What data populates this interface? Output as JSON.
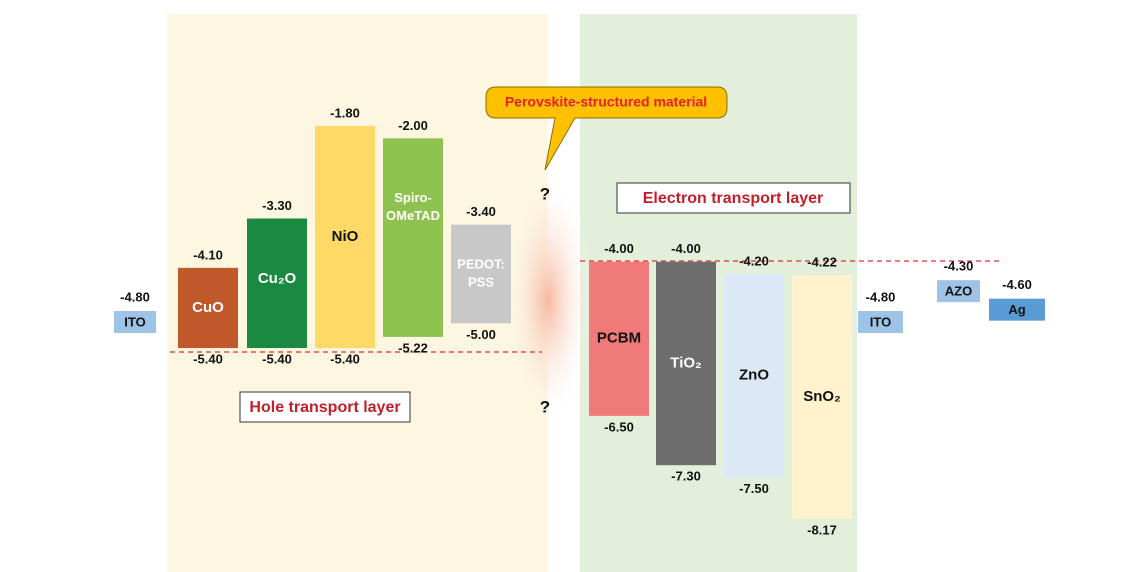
{
  "diagram": {
    "callout": "Perovskite-structured material",
    "question_marks": [
      "?",
      "?"
    ],
    "htl_label": "Hole transport layer",
    "etl_label": "Electron transport layer",
    "electrodes": [
      {
        "name": "ITO",
        "level": "-4.80"
      },
      {
        "name": "ITO",
        "level": "-4.80"
      },
      {
        "name": "AZO",
        "level": "-4.30"
      },
      {
        "name": "Ag",
        "level": "-4.60"
      }
    ],
    "materials": [
      {
        "label": [
          "CuO"
        ],
        "top": "-4.10",
        "bottom": "-5.40"
      },
      {
        "label": [
          "Cu₂O"
        ],
        "top": "-3.30",
        "bottom": "-5.40"
      },
      {
        "label": [
          "NiO"
        ],
        "top": "-1.80",
        "bottom": "-5.40"
      },
      {
        "label": [
          "Spiro-",
          "OMeTAD"
        ],
        "top": "-2.00",
        "bottom": "-5.22"
      },
      {
        "label": [
          "PEDOT:",
          "PSS"
        ],
        "top": "-3.40",
        "bottom": "-5.00"
      },
      {
        "label": [
          "PCBM"
        ],
        "top": "-4.00",
        "bottom": "-6.50"
      },
      {
        "label": [
          "TiO₂"
        ],
        "top": "-4.00",
        "bottom": "-7.30"
      },
      {
        "label": [
          "ZnO"
        ],
        "top": "-4.20",
        "bottom": "-7.50"
      },
      {
        "label": [
          "SnO₂"
        ],
        "top": "-4.22",
        "bottom": "-8.17"
      }
    ]
  }
}
